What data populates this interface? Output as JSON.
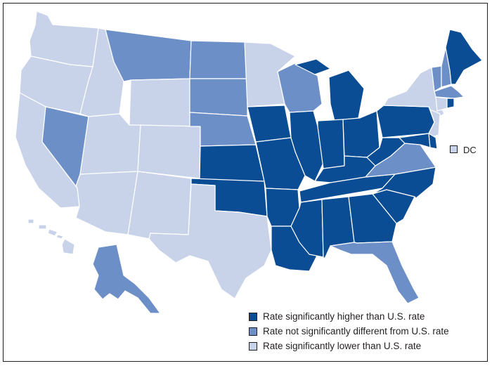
{
  "colors": {
    "higher": "#0a4d94",
    "not_different": "#6c8fc7",
    "lower": "#c8d3ea",
    "border": "#231f20"
  },
  "legend": {
    "items": [
      {
        "key": "higher",
        "label": "Rate significantly higher than U.S. rate"
      },
      {
        "key": "not_different",
        "label": "Rate not significantly different from U.S. rate"
      },
      {
        "key": "lower",
        "label": "Rate significantly lower than U.S. rate"
      }
    ]
  },
  "dc": {
    "label": "DC",
    "category": "lower"
  },
  "states": {
    "WA": "lower",
    "OR": "lower",
    "CA": "lower",
    "ID": "lower",
    "NV": "not_different",
    "MT": "not_different",
    "WY": "lower",
    "UT": "lower",
    "AZ": "lower",
    "CO": "lower",
    "NM": "lower",
    "ND": "not_different",
    "SD": "not_different",
    "NE": "not_different",
    "KS": "higher",
    "OK": "higher",
    "TX": "lower",
    "MN": "lower",
    "IA": "higher",
    "MO": "higher",
    "AR": "higher",
    "LA": "higher",
    "WI": "not_different",
    "IL": "higher",
    "MI": "higher",
    "IN": "higher",
    "OH": "higher",
    "KY": "higher",
    "TN": "higher",
    "MS": "higher",
    "AL": "higher",
    "GA": "higher",
    "FL": "not_different",
    "SC": "higher",
    "NC": "higher",
    "VA": "not_different",
    "WV": "higher",
    "PA": "higher",
    "NY": "lower",
    "NJ": "lower",
    "DE": "higher",
    "MD": "higher",
    "VT": "not_different",
    "NH": "not_different",
    "ME": "higher",
    "MA": "not_different",
    "CT": "lower",
    "RI": "higher",
    "AK": "not_different",
    "HI": "lower"
  }
}
